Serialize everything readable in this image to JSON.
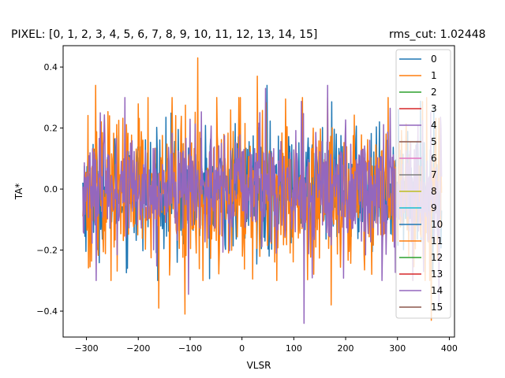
{
  "chart_data": {
    "type": "line",
    "title_left": "PIXEL: [0, 1, 2, 3, 4, 5, 6, 7, 8, 9, 10, 11, 12, 13, 14, 15]",
    "title_right": "rms_cut: 1.02448",
    "xlabel": "VLSR",
    "ylabel": "TA*",
    "xlim": [
      -345,
      410
    ],
    "ylim": [
      -0.485,
      0.47
    ],
    "x_range": [
      -307,
      385
    ],
    "xticks": [
      -300,
      -200,
      -100,
      0,
      100,
      200,
      300,
      400
    ],
    "xtick_labels": [
      "−300",
      "−200",
      "−100",
      "0",
      "100",
      "200",
      "300",
      "400"
    ],
    "yticks": [
      -0.4,
      -0.2,
      0.0,
      0.2,
      0.4
    ],
    "ytick_labels": [
      "−0.4",
      "−0.2",
      "0.0",
      "0.2",
      "0.4"
    ],
    "grid": false,
    "legend_position": "upper-right",
    "legend": [
      {
        "label": "0",
        "color": "#1f77b4"
      },
      {
        "label": "1",
        "color": "#ff7f0e"
      },
      {
        "label": "2",
        "color": "#2ca02c"
      },
      {
        "label": "3",
        "color": "#d62728"
      },
      {
        "label": "4",
        "color": "#9467bd"
      },
      {
        "label": "5",
        "color": "#8c564b"
      },
      {
        "label": "6",
        "color": "#e377c2"
      },
      {
        "label": "7",
        "color": "#7f7f7f"
      },
      {
        "label": "8",
        "color": "#bcbd22"
      },
      {
        "label": "9",
        "color": "#17becf"
      },
      {
        "label": "10",
        "color": "#1f77b4"
      },
      {
        "label": "11",
        "color": "#ff7f0e"
      },
      {
        "label": "12",
        "color": "#2ca02c"
      },
      {
        "label": "13",
        "color": "#d62728"
      },
      {
        "label": "14",
        "color": "#9467bd"
      },
      {
        "label": "15",
        "color": "#8c564b"
      }
    ],
    "series": [
      {
        "label": "0",
        "color": "#1f77b4",
        "amplitude": 0.12,
        "visible_spikes": [
          [
            48,
            0.34
          ],
          [
            -125,
            -0.24
          ]
        ]
      },
      {
        "label": "1",
        "color": "#ff7f0e",
        "amplitude": 0.16,
        "visible_spikes": [
          [
            -85,
            0.43
          ],
          [
            -160,
            -0.39
          ],
          [
            -110,
            -0.41
          ],
          [
            172,
            -0.38
          ],
          [
            365,
            -0.43
          ],
          [
            -282,
            0.34
          ],
          [
            30,
            0.37
          ]
        ]
      },
      {
        "label": "14",
        "color": "#9467bd",
        "amplitude": 0.12,
        "visible_spikes": [
          [
            120,
            -0.44
          ],
          [
            -103,
            -0.345
          ],
          [
            45,
            0.33
          ],
          [
            165,
            0.34
          ],
          [
            270,
            -0.3
          ],
          [
            380,
            -0.39
          ]
        ]
      }
    ]
  }
}
